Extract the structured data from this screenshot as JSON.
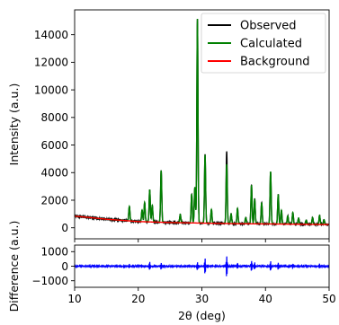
{
  "chart_data": {
    "type": "line",
    "x_label": "2θ (deg)",
    "x_range": [
      10,
      50
    ],
    "x_ticks": [
      10,
      20,
      30,
      40,
      50
    ],
    "panels": [
      {
        "name": "main",
        "y_label": "Intensity (a.u.)",
        "y_range": [
          -800,
          15800
        ],
        "y_ticks": [
          0,
          2000,
          4000,
          6000,
          8000,
          10000,
          12000,
          14000
        ],
        "legend_position": "top-right",
        "series": [
          {
            "name": "Observed",
            "color": "#000000",
            "role": "observed"
          },
          {
            "name": "Calculated",
            "color": "#008000",
            "role": "calculated"
          },
          {
            "name": "Background",
            "color": "#ff0000",
            "role": "background"
          }
        ],
        "background_curve": [
          [
            10,
            840
          ],
          [
            12,
            760
          ],
          [
            15,
            620
          ],
          [
            18,
            520
          ],
          [
            20,
            450
          ],
          [
            25,
            380
          ],
          [
            30,
            340
          ],
          [
            35,
            300
          ],
          [
            40,
            280
          ],
          [
            45,
            260
          ],
          [
            50,
            230
          ]
        ],
        "peaks": [
          {
            "x": 18.6,
            "height": 1050
          },
          {
            "x": 20.6,
            "height": 850
          },
          {
            "x": 21.0,
            "height": 1400
          },
          {
            "x": 21.8,
            "height": 2350
          },
          {
            "x": 22.2,
            "height": 1200
          },
          {
            "x": 23.6,
            "height": 3750
          },
          {
            "x": 26.6,
            "height": 600
          },
          {
            "x": 28.4,
            "height": 2100
          },
          {
            "x": 28.9,
            "height": 2600
          },
          {
            "x": 29.3,
            "height": 14800
          },
          {
            "x": 30.5,
            "height": 4950
          },
          {
            "x": 31.5,
            "height": 1000
          },
          {
            "x": 33.9,
            "height": 4300
          },
          {
            "x": 34.6,
            "height": 700
          },
          {
            "x": 35.6,
            "height": 1100
          },
          {
            "x": 36.9,
            "height": 450
          },
          {
            "x": 37.8,
            "height": 2800
          },
          {
            "x": 38.3,
            "height": 1800
          },
          {
            "x": 39.4,
            "height": 1550
          },
          {
            "x": 40.8,
            "height": 3800
          },
          {
            "x": 42.0,
            "height": 2150
          },
          {
            "x": 42.5,
            "height": 1000
          },
          {
            "x": 43.5,
            "height": 600
          },
          {
            "x": 44.3,
            "height": 850
          },
          {
            "x": 45.2,
            "height": 450
          },
          {
            "x": 46.4,
            "height": 300
          },
          {
            "x": 47.4,
            "height": 500
          },
          {
            "x": 48.5,
            "height": 650
          },
          {
            "x": 49.2,
            "height": 350
          }
        ],
        "observed_extra": [
          {
            "x": 33.9,
            "height": 900
          }
        ]
      },
      {
        "name": "difference",
        "y_label": "Difference (a.u.)",
        "y_range": [
          -1450,
          1450
        ],
        "y_ticks": [
          -1000,
          0,
          1000
        ],
        "series": [
          {
            "name": "Difference",
            "color": "#0000ff",
            "role": "difference"
          }
        ],
        "spikes": [
          {
            "x": 18.6,
            "amp": 170
          },
          {
            "x": 21.8,
            "amp": 300
          },
          {
            "x": 23.6,
            "amp": 220
          },
          {
            "x": 29.3,
            "amp": 320
          },
          {
            "x": 30.5,
            "amp": 620
          },
          {
            "x": 33.9,
            "amp": 820
          },
          {
            "x": 35.6,
            "amp": 200
          },
          {
            "x": 37.8,
            "amp": 400
          },
          {
            "x": 38.3,
            "amp": 260
          },
          {
            "x": 40.8,
            "amp": 330
          },
          {
            "x": 42.0,
            "amp": 250
          },
          {
            "x": 44.3,
            "amp": 180
          },
          {
            "x": 48.5,
            "amp": 150
          }
        ]
      }
    ]
  }
}
